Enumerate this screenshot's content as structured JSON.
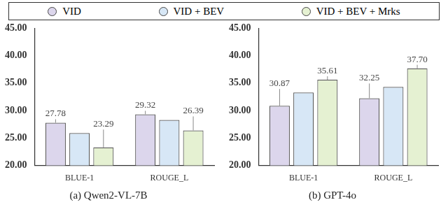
{
  "chart_data": [
    {
      "type": "bar",
      "title": "(a) Qwen2-VL-7B",
      "categories": [
        "BLUE-1",
        "ROUGE_L"
      ],
      "series": [
        {
          "name": "VID",
          "color": "#dcd6ec",
          "values": [
            27.78,
            29.32
          ],
          "value_labels": [
            "27.78",
            "29.32"
          ]
        },
        {
          "name": "VID + BEV",
          "color": "#d7e7f6",
          "values": [
            25.9,
            28.3
          ],
          "value_labels": [
            null,
            null
          ]
        },
        {
          "name": "VID + BEV + Mrks",
          "color": "#e5f1d2",
          "values": [
            23.29,
            26.39
          ],
          "value_labels": [
            "23.29",
            "26.39"
          ]
        }
      ],
      "ylim": [
        20,
        45
      ],
      "yticks": [
        {
          "value": 20,
          "label": "20.00"
        },
        {
          "value": 25,
          "label": "25.00"
        },
        {
          "value": 30,
          "label": "30.00"
        },
        {
          "value": 35,
          "label": "35.00"
        },
        {
          "value": 40,
          "label": "40.00"
        },
        {
          "value": 45,
          "label": "45.00"
        }
      ],
      "grid": false,
      "legend": "top",
      "data_labels": true
    },
    {
      "type": "bar",
      "title": "(b) GPT-4o",
      "categories": [
        "BLUE-1",
        "ROUGE_L"
      ],
      "series": [
        {
          "name": "VID",
          "color": "#dcd6ec",
          "values": [
            30.87,
            32.25
          ],
          "value_labels": [
            "30.87",
            "32.25"
          ]
        },
        {
          "name": "VID + BEV",
          "color": "#d7e7f6",
          "values": [
            33.3,
            34.3
          ],
          "value_labels": [
            null,
            null
          ]
        },
        {
          "name": "VID + BEV + Mrks",
          "color": "#e5f1d2",
          "values": [
            35.61,
            37.7
          ],
          "value_labels": [
            "35.61",
            "37.70"
          ]
        }
      ],
      "ylim": [
        20,
        45
      ],
      "yticks": [
        {
          "value": 20,
          "label": "20.00"
        },
        {
          "value": 25,
          "label": "25.00"
        },
        {
          "value": 30,
          "label": "30.00"
        },
        {
          "value": 35,
          "label": "35.00"
        },
        {
          "value": 40,
          "label": "40.00"
        },
        {
          "value": 45,
          "label": "45.00"
        }
      ],
      "grid": false,
      "legend": "top",
      "data_labels": true
    }
  ]
}
